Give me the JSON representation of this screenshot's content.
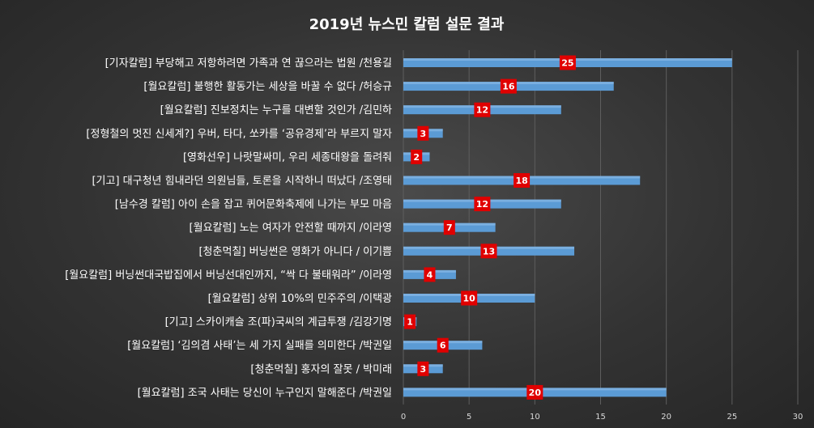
{
  "chart_data": {
    "type": "bar",
    "orientation": "horizontal",
    "title": "2019년 뉴스민 칼럼 설문 결과",
    "xlabel": "",
    "ylabel": "",
    "xlim": [
      0,
      30
    ],
    "x_ticks": [
      "0",
      "5",
      "10",
      "15",
      "20",
      "25",
      "30"
    ],
    "grid": true,
    "legend": "none",
    "bar_color": "#5b9bd5",
    "label_bg_color": "#e00000",
    "categories": [
      "[기자칼럼] 부당해고 저항하려면 가족과 연 끊으라는 법원 /천용길",
      "[월요칼럼] 불행한 활동가는 세상을 바꿀 수 없다 /허승규",
      "[월요칼럼] 진보정치는 누구를 대변할 것인가 /김민하",
      "[정형철의 멋진 신세계?] 우버, 타다, 쏘카를 ‘공유경제’라 부르지 말자",
      "[영화선우] 나랏말싸미, 우리 세종대왕을 돌려줘",
      "[기고] 대구청년 힘내라던 의원님들, 토론을 시작하니 떠났다 /조영태",
      "[남수경 칼럼] 아이 손을 잡고 퀴어문화축제에 나가는 부모 마음",
      "[월요칼럼] 노는 여자가 안전할 때까지 /이라영",
      "[청춘먹칠] 버닝썬은 영화가 아니다 / 이기쁨",
      "[월요칼럼] 버닝썬대국밥집에서 버닝선대인까지, “싹 다 불태워라” /이라영",
      "[월요칼럼] 상위 10%의 민주주의 /이택광",
      "[기고] 스카이캐슬 조(파)국씨의 계급투쟁 /김강기명",
      "[월요칼럼] ‘김의겸 사태’는 세 가지 실패를 의미한다 /박권일",
      "[청춘먹칠] 홍자의 잘못 / 박미래",
      "[월요칼럼] 조국 사태는 당신이 누구인지 말해준다 /박권일"
    ],
    "values": [
      25,
      16,
      12,
      3,
      2,
      18,
      12,
      7,
      13,
      4,
      10,
      1,
      6,
      3,
      20
    ]
  }
}
